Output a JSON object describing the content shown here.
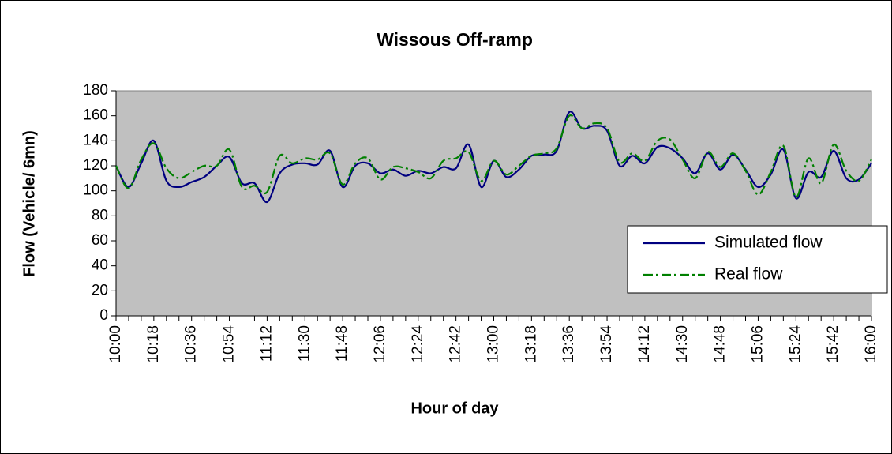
{
  "chart_data": {
    "type": "line",
    "title": "Wissous Off-ramp",
    "x_label": "Hour of day",
    "y_label": "Flow (Vehicle/ 6mn)",
    "categories": [
      "10:00",
      null,
      null,
      "10:18",
      null,
      null,
      "10:36",
      null,
      null,
      "10:54",
      null,
      null,
      "11:12",
      null,
      null,
      "11:30",
      null,
      null,
      "11:48",
      null,
      null,
      "12:06",
      null,
      null,
      "12:24",
      null,
      null,
      "12:42",
      null,
      null,
      "13:00",
      null,
      null,
      "13:18",
      null,
      null,
      "13:36",
      null,
      null,
      "13:54",
      null,
      null,
      "14:12",
      null,
      null,
      "14:30",
      null,
      null,
      "14:48",
      null,
      null,
      "15:06",
      null,
      null,
      "15:24",
      null,
      null,
      "15:42",
      null,
      null,
      "16:00"
    ],
    "series": [
      {
        "name": "Simulated flow",
        "color": "#000080",
        "dash": "solid",
        "values": [
          120,
          103,
          122,
          140,
          108,
          103,
          107,
          111,
          120,
          127,
          106,
          106,
          91,
          114,
          121,
          122,
          121,
          132,
          103,
          120,
          122,
          114,
          117,
          112,
          116,
          114,
          119,
          118,
          137,
          103,
          124,
          111,
          117,
          128,
          129,
          132,
          163,
          150,
          152,
          148,
          120,
          128,
          122,
          135,
          134,
          126,
          114,
          130,
          117,
          129,
          117,
          103,
          113,
          133,
          94,
          115,
          111,
          132,
          110,
          109,
          122
        ]
      },
      {
        "name": "Real flow",
        "color": "#008000",
        "dash": "dashdot",
        "values": [
          120,
          102,
          125,
          138,
          118,
          110,
          115,
          120,
          120,
          133,
          103,
          104,
          99,
          128,
          122,
          126,
          125,
          130,
          105,
          122,
          126,
          109,
          119,
          118,
          115,
          110,
          124,
          126,
          131,
          108,
          124,
          113,
          120,
          128,
          130,
          134,
          160,
          150,
          154,
          150,
          123,
          130,
          124,
          140,
          141,
          125,
          110,
          131,
          119,
          130,
          116,
          97,
          115,
          136,
          95,
          126,
          106,
          137,
          116,
          108,
          125
        ]
      }
    ],
    "ylim": [
      0,
      180
    ],
    "yticks": [
      0,
      20,
      40,
      60,
      80,
      100,
      120,
      140,
      160,
      180
    ],
    "grid": false,
    "legend": "right",
    "plot_background": "#c0c0c0"
  }
}
